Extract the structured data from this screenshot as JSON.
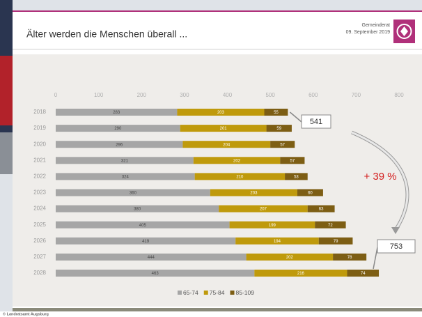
{
  "header": {
    "title": "Älter werden die Menschen überall ...",
    "meeting": "Gemeinderat",
    "date": "09. September 2019"
  },
  "footer": "© Landratsamt Augsburg",
  "chart_data": {
    "type": "bar",
    "orientation": "horizontal",
    "stacked": true,
    "categories": [
      "2018",
      "2019",
      "2020",
      "2021",
      "2022",
      "2023",
      "2024",
      "2025",
      "2026",
      "2027",
      "2028"
    ],
    "series": [
      {
        "name": "65-74",
        "color": "#a6a6a6",
        "values": [
          283,
          290,
          296,
          321,
          324,
          360,
          380,
          405,
          419,
          444,
          463
        ]
      },
      {
        "name": "75-84",
        "color": "#bf9a0c",
        "values": [
          203,
          201,
          204,
          202,
          210,
          203,
          207,
          199,
          194,
          202,
          216
        ]
      },
      {
        "name": "85-109",
        "color": "#7d5e14",
        "values": [
          55,
          59,
          57,
          57,
          53,
          60,
          63,
          72,
          79,
          78,
          74
        ]
      }
    ],
    "xlim": [
      0,
      800
    ],
    "xticks": [
      0,
      100,
      200,
      300,
      400,
      500,
      600,
      700,
      800
    ],
    "annotations": [
      "541",
      "753",
      "+ 39 %"
    ],
    "legend": "bottom"
  }
}
